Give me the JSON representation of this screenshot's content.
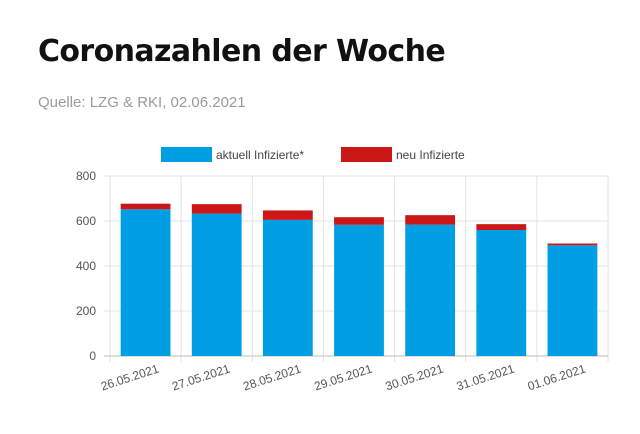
{
  "header": {
    "title": "Coronazahlen der Woche",
    "source": "Quelle: LZG & RKI, 02.06.2021"
  },
  "chart_data": {
    "type": "bar",
    "stacked": true,
    "categories": [
      "26.05.2021",
      "27.05.2021",
      "28.05.2021",
      "29.05.2021",
      "30.05.2021",
      "31.05.2021",
      "01.06.2021"
    ],
    "series": [
      {
        "name": "aktuell Infizierte*",
        "color": "#009fe3",
        "values": [
          652,
          633,
          605,
          583,
          584,
          560,
          492
        ]
      },
      {
        "name": "neu Infizierte",
        "color": "#cc1717",
        "values": [
          25,
          42,
          42,
          34,
          42,
          26,
          8
        ]
      }
    ],
    "ylim": [
      0,
      800
    ],
    "yticks": [
      "0",
      "200",
      "400",
      "600",
      "800"
    ],
    "grid": true,
    "legend_position": "top"
  }
}
